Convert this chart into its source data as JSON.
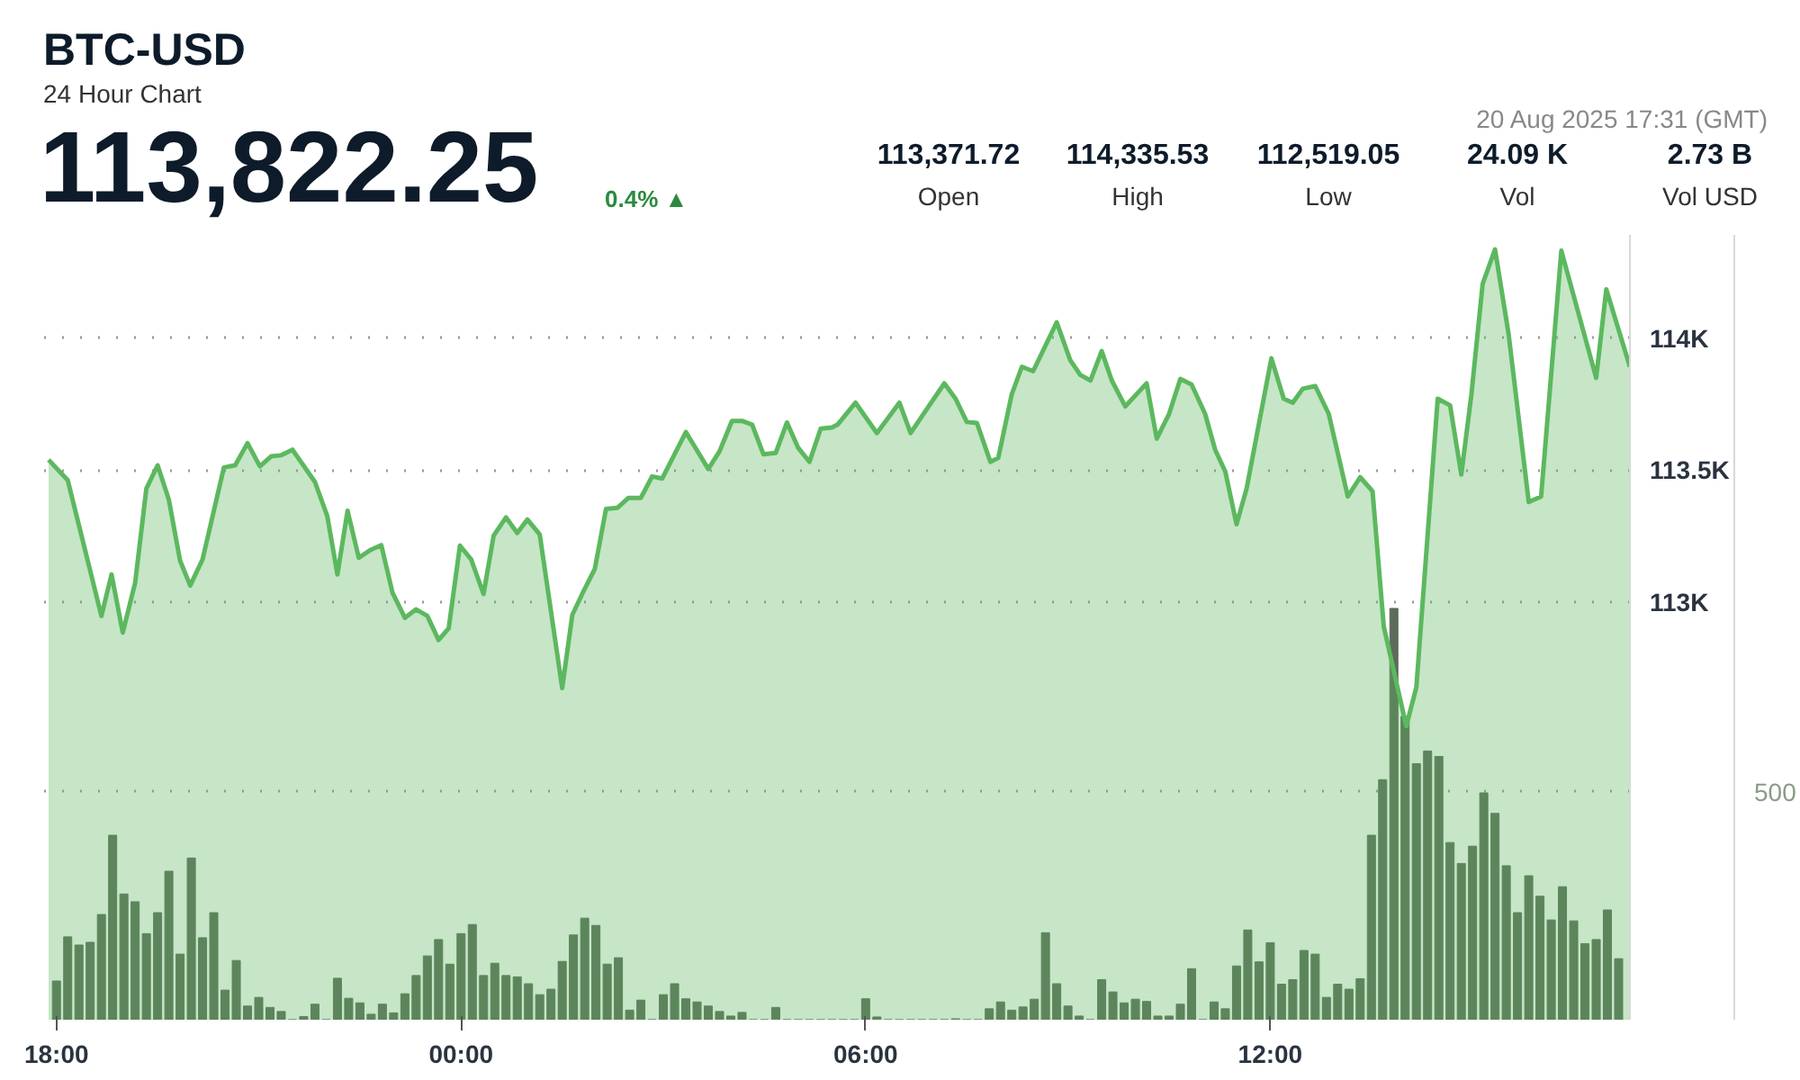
{
  "chart_data": {
    "type": "area",
    "title": "BTC-USD",
    "subtitle": "24 Hour Chart",
    "annotations": [
      "113,822.25",
      "0.4% ▲",
      "20 Aug 2025 17:31 (GMT)",
      "113,371.72",
      "Open",
      "114,335.53",
      "High",
      "112,519.05",
      "Low",
      "24.09 K",
      "Vol",
      "2.73 B",
      "Vol USD"
    ],
    "xlim": [
      "2025-08-19T17:49",
      "2025-08-20T17:20"
    ],
    "xticks": [
      {
        "value": "2025-08-19T18:00",
        "label": "18:00"
      },
      {
        "value": "2025-08-20T00:00",
        "label": "00:00"
      },
      {
        "value": "2025-08-20T06:00",
        "label": "06:00"
      },
      {
        "value": "2025-08-20T12:00",
        "label": "12:00"
      }
    ],
    "ylim": [
      111420,
      114390
    ],
    "yticks": [
      {
        "value": 113000,
        "label": "113K"
      },
      {
        "value": 113500,
        "label": "113.5K"
      },
      {
        "value": 114000,
        "label": "114K"
      }
    ],
    "y2lim": [
      0,
      1723
    ],
    "y2ticks": [
      500
    ],
    "grid": "y",
    "series": [
      {
        "color": "#5cb85f",
        "x": [
          "2025-08-19T17:53",
          "2025-08-19T18:10",
          "2025-08-19T18:40",
          "2025-08-19T18:49",
          "2025-08-19T18:59",
          "2025-08-19T19:10",
          "2025-08-19T19:20",
          "2025-08-19T19:30",
          "2025-08-19T19:40",
          "2025-08-19T19:50",
          "2025-08-19T19:59",
          "2025-08-19T20:10",
          "2025-08-19T20:29",
          "2025-08-19T20:39",
          "2025-08-19T20:50",
          "2025-08-19T21:01",
          "2025-08-19T21:11",
          "2025-08-19T21:20",
          "2025-08-19T21:30",
          "2025-08-19T21:50",
          "2025-08-19T22:01",
          "2025-08-19T22:10",
          "2025-08-19T22:19",
          "2025-08-19T22:29",
          "2025-08-19T22:40",
          "2025-08-19T22:49",
          "2025-08-19T22:59",
          "2025-08-19T23:10",
          "2025-08-19T23:20",
          "2025-08-19T23:30",
          "2025-08-19T23:40",
          "2025-08-19T23:49",
          "2025-08-19T23:59",
          "2025-08-20T00:09",
          "2025-08-20T00:20",
          "2025-08-20T00:29",
          "2025-08-20T00:40",
          "2025-08-20T00:50",
          "2025-08-20T00:59",
          "2025-08-20T01:10",
          "2025-08-20T01:30",
          "2025-08-20T01:39",
          "2025-08-20T01:49",
          "2025-08-20T01:59",
          "2025-08-20T02:09",
          "2025-08-20T02:19",
          "2025-08-20T02:29",
          "2025-08-20T02:40",
          "2025-08-20T02:50",
          "2025-08-20T02:59",
          "2025-08-20T03:20",
          "2025-08-20T03:40",
          "2025-08-20T03:50",
          "2025-08-20T04:01",
          "2025-08-20T04:10",
          "2025-08-20T04:19",
          "2025-08-20T04:29",
          "2025-08-20T04:40",
          "2025-08-20T04:50",
          "2025-08-20T05:00",
          "2025-08-20T05:10",
          "2025-08-20T05:20",
          "2025-08-20T05:30",
          "2025-08-20T05:35",
          "2025-08-20T05:51",
          "2025-08-20T06:10",
          "2025-08-20T06:30",
          "2025-08-20T06:40",
          "2025-08-20T06:50",
          "2025-08-20T07:10",
          "2025-08-20T07:20",
          "2025-08-20T07:30",
          "2025-08-20T07:39",
          "2025-08-20T07:51",
          "2025-08-20T07:58",
          "2025-08-20T08:10",
          "2025-08-20T08:19",
          "2025-08-20T08:29",
          "2025-08-20T08:50",
          "2025-08-20T09:02",
          "2025-08-20T09:11",
          "2025-08-20T09:20",
          "2025-08-20T09:30",
          "2025-08-20T09:39",
          "2025-08-20T09:51",
          "2025-08-20T10:10",
          "2025-08-20T10:19",
          "2025-08-20T10:30",
          "2025-08-20T10:40",
          "2025-08-20T10:50",
          "2025-08-20T11:02",
          "2025-08-20T11:11",
          "2025-08-20T11:20",
          "2025-08-20T11:30",
          "2025-08-20T11:39",
          "2025-08-20T12:01",
          "2025-08-20T12:12",
          "2025-08-20T12:20",
          "2025-08-20T12:29",
          "2025-08-20T12:40",
          "2025-08-20T12:52",
          "2025-08-20T13:09",
          "2025-08-20T13:20",
          "2025-08-20T13:31",
          "2025-08-20T13:41",
          "2025-08-20T14:01",
          "2025-08-20T14:10",
          "2025-08-20T14:29",
          "2025-08-20T14:40",
          "2025-08-20T14:50",
          "2025-08-20T14:59",
          "2025-08-20T15:09",
          "2025-08-20T15:20",
          "2025-08-20T15:32",
          "2025-08-20T15:50",
          "2025-08-20T16:01",
          "2025-08-20T16:19",
          "2025-08-20T16:50",
          "2025-08-20T16:59",
          "2025-08-20T17:20"
        ],
        "values": [
          113539,
          113462,
          112948,
          113105,
          112885,
          113073,
          113430,
          113518,
          113388,
          113157,
          113063,
          113162,
          113510,
          113518,
          113602,
          113514,
          113552,
          113556,
          113577,
          113455,
          113325,
          113105,
          113346,
          113168,
          113199,
          113216,
          113036,
          112941,
          112973,
          112948,
          112857,
          112901,
          113214,
          113162,
          113031,
          113252,
          113321,
          113262,
          113313,
          113256,
          112675,
          112952,
          113042,
          113126,
          113353,
          113357,
          113395,
          113395,
          113476,
          113468,
          113644,
          113504,
          113571,
          113686,
          113686,
          113672,
          113560,
          113565,
          113680,
          113584,
          113531,
          113657,
          113661,
          113672,
          113755,
          113640,
          113755,
          113640,
          113703,
          113828,
          113770,
          113682,
          113678,
          113531,
          113546,
          113787,
          113891,
          113874,
          114059,
          113916,
          113860,
          113839,
          113950,
          113839,
          113741,
          113828,
          113619,
          113713,
          113845,
          113824,
          113713,
          113577,
          113494,
          113295,
          113431,
          113923,
          113770,
          113755,
          113808,
          113818,
          113713,
          113400,
          113473,
          113420,
          112908,
          112531,
          112678,
          113770,
          113745,
          113483,
          113787,
          114205,
          114335,
          114017,
          113379,
          113400,
          114330,
          113849,
          114184,
          113891
        ]
      },
      {
        "type": "bar",
        "axis": "y2",
        "color": "#5e6a5b",
        "x": [
          "2025-08-19T18:00",
          "2025-08-19T18:10",
          "2025-08-19T18:20",
          "2025-08-19T18:30",
          "2025-08-19T18:40",
          "2025-08-19T18:50",
          "2025-08-19T19:00",
          "2025-08-19T19:10",
          "2025-08-19T19:20",
          "2025-08-19T19:30",
          "2025-08-19T19:40",
          "2025-08-19T19:50",
          "2025-08-19T20:00",
          "2025-08-19T20:10",
          "2025-08-19T20:20",
          "2025-08-19T20:30",
          "2025-08-19T20:40",
          "2025-08-19T20:50",
          "2025-08-19T21:00",
          "2025-08-19T21:10",
          "2025-08-19T21:20",
          "2025-08-19T21:30",
          "2025-08-19T21:40",
          "2025-08-19T21:50",
          "2025-08-19T22:00",
          "2025-08-19T22:10",
          "2025-08-19T22:20",
          "2025-08-19T22:30",
          "2025-08-19T22:40",
          "2025-08-19T22:50",
          "2025-08-19T23:00",
          "2025-08-19T23:10",
          "2025-08-19T23:20",
          "2025-08-19T23:30",
          "2025-08-19T23:40",
          "2025-08-19T23:50",
          "2025-08-20T00:00",
          "2025-08-20T00:10",
          "2025-08-20T00:20",
          "2025-08-20T00:30",
          "2025-08-20T00:40",
          "2025-08-20T00:50",
          "2025-08-20T01:00",
          "2025-08-20T01:10",
          "2025-08-20T01:20",
          "2025-08-20T01:30",
          "2025-08-20T01:40",
          "2025-08-20T01:50",
          "2025-08-20T02:00",
          "2025-08-20T02:10",
          "2025-08-20T02:20",
          "2025-08-20T02:30",
          "2025-08-20T02:40",
          "2025-08-20T02:50",
          "2025-08-20T03:00",
          "2025-08-20T03:10",
          "2025-08-20T03:20",
          "2025-08-20T03:30",
          "2025-08-20T03:40",
          "2025-08-20T03:50",
          "2025-08-20T04:00",
          "2025-08-20T04:10",
          "2025-08-20T04:20",
          "2025-08-20T04:30",
          "2025-08-20T04:40",
          "2025-08-20T04:50",
          "2025-08-20T05:00",
          "2025-08-20T05:10",
          "2025-08-20T05:20",
          "2025-08-20T05:30",
          "2025-08-20T05:40",
          "2025-08-20T05:50",
          "2025-08-20T06:00",
          "2025-08-20T06:10",
          "2025-08-20T06:20",
          "2025-08-20T06:30",
          "2025-08-20T06:40",
          "2025-08-20T06:50",
          "2025-08-20T07:00",
          "2025-08-20T07:10",
          "2025-08-20T07:20",
          "2025-08-20T07:30",
          "2025-08-20T07:40",
          "2025-08-20T07:50",
          "2025-08-20T08:00",
          "2025-08-20T08:10",
          "2025-08-20T08:20",
          "2025-08-20T08:30",
          "2025-08-20T08:40",
          "2025-08-20T08:50",
          "2025-08-20T09:00",
          "2025-08-20T09:10",
          "2025-08-20T09:20",
          "2025-08-20T09:30",
          "2025-08-20T09:40",
          "2025-08-20T09:50",
          "2025-08-20T10:00",
          "2025-08-20T10:10",
          "2025-08-20T10:20",
          "2025-08-20T10:30",
          "2025-08-20T10:40",
          "2025-08-20T10:50",
          "2025-08-20T11:00",
          "2025-08-20T11:10",
          "2025-08-20T11:20",
          "2025-08-20T11:30",
          "2025-08-20T11:40",
          "2025-08-20T11:50",
          "2025-08-20T12:00",
          "2025-08-20T12:10",
          "2025-08-20T12:20",
          "2025-08-20T12:30",
          "2025-08-20T12:40",
          "2025-08-20T12:50",
          "2025-08-20T13:00",
          "2025-08-20T13:10",
          "2025-08-20T13:20",
          "2025-08-20T13:30",
          "2025-08-20T13:40",
          "2025-08-20T13:50",
          "2025-08-20T14:00",
          "2025-08-20T14:10",
          "2025-08-20T14:20",
          "2025-08-20T14:30",
          "2025-08-20T14:40",
          "2025-08-20T14:50",
          "2025-08-20T15:00",
          "2025-08-20T15:10",
          "2025-08-20T15:20",
          "2025-08-20T15:30",
          "2025-08-20T15:40",
          "2025-08-20T15:50",
          "2025-08-20T16:00",
          "2025-08-20T16:10",
          "2025-08-20T16:20",
          "2025-08-20T16:30",
          "2025-08-20T16:40",
          "2025-08-20T16:50",
          "2025-08-20T17:00",
          "2025-08-20T17:10"
        ],
        "values": [
          85,
          182,
          164,
          170,
          231,
          405,
          276,
          259,
          189,
          235,
          326,
          144,
          355,
          180,
          235,
          65,
          130,
          30,
          49,
          27,
          18,
          0,
          7,
          34,
          0,
          91,
          47,
          37,
          12,
          34,
          15,
          57,
          97,
          140,
          176,
          122,
          189,
          209,
          97,
          124,
          97,
          94,
          79,
          55,
          67,
          128,
          186,
          223,
          207,
          122,
          136,
          21,
          43,
          0,
          55,
          79,
          46,
          39,
          30,
          18,
          8,
          16,
          0,
          0,
          27,
          0,
          0,
          0,
          0,
          0,
          0,
          0,
          46,
          6,
          0,
          0,
          0,
          0,
          0,
          0,
          2,
          0,
          0,
          24,
          39,
          21,
          28,
          45,
          191,
          79,
          30,
          8,
          0,
          88,
          61,
          37,
          45,
          40,
          8,
          8,
          34,
          112,
          0,
          39,
          24,
          118,
          197,
          127,
          169,
          78,
          88,
          152,
          144,
          49,
          78,
          67,
          90,
          405,
          527,
          903,
          666,
          562,
          590,
          578,
          389,
          343,
          381,
          498,
          453,
          338,
          235,
          316,
          271,
          219,
          292,
          217,
          167,
          176,
          241,
          134
        ]
      }
    ]
  }
}
